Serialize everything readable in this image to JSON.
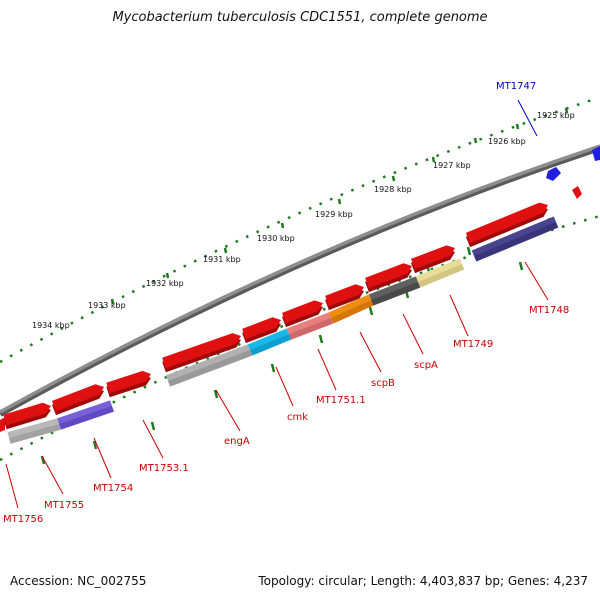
{
  "title": "Mycobacterium tuberculosis CDC1551, complete genome",
  "footer": {
    "accession": "Accession: NC_002755",
    "topology": "Topology: circular; Length: 4,403,837 bp; Genes: 4,237"
  },
  "colors": {
    "backbone": "#7a7a7a",
    "tick_green": "#1f7a1f",
    "forward_gene": "#e01010",
    "ticklabel": "#111111",
    "label_red": "#cc0000",
    "label_blue": "#0000cc"
  },
  "kbp_ticks": [
    "1925 kbp",
    "1926 kbp",
    "1927 kbp",
    "1928 kbp",
    "1929 kbp",
    "1930 kbp",
    "1931 kbp",
    "1932 kbp",
    "1933 kbp",
    "1934 kbp"
  ],
  "gene_labels": [
    {
      "text": "MT1747",
      "color": "blue"
    },
    {
      "text": "MT1748",
      "color": "red"
    },
    {
      "text": "MT1749",
      "color": "red"
    },
    {
      "text": "scpA",
      "color": "red"
    },
    {
      "text": "scpB",
      "color": "red"
    },
    {
      "text": "MT1751.1",
      "color": "red"
    },
    {
      "text": "cmk",
      "color": "red"
    },
    {
      "text": "engA",
      "color": "red"
    },
    {
      "text": "MT1753.1",
      "color": "red"
    },
    {
      "text": "MT1754",
      "color": "red"
    },
    {
      "text": "MT1755",
      "color": "red"
    },
    {
      "text": "MT1756",
      "color": "red"
    }
  ]
}
